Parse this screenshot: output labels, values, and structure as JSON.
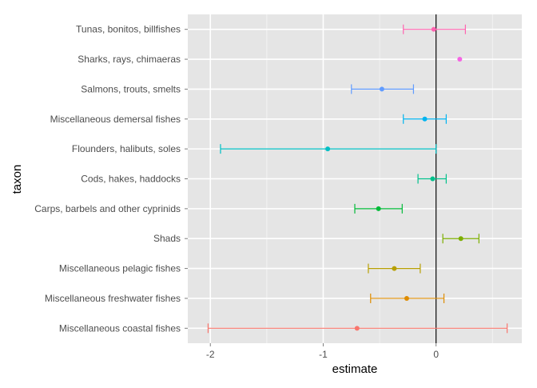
{
  "chart_data": {
    "type": "scatter",
    "xlabel": "estimate",
    "ylabel": "taxon",
    "xlim": [
      -2.2,
      0.76
    ],
    "x_ticks": [
      -2,
      -1,
      0
    ],
    "x_tick_labels": [
      "-2",
      "-1",
      "0"
    ],
    "reference_line_x": 0,
    "grid": true,
    "legend": "none",
    "taxa": [
      {
        "name": "Miscellaneous coastal fishes",
        "estimate": -0.7,
        "lower": -2.02,
        "upper": 0.63,
        "color": "#F8766D"
      },
      {
        "name": "Miscellaneous freshwater fishes",
        "estimate": -0.26,
        "lower": -0.58,
        "upper": 0.07,
        "color": "#DE8C00"
      },
      {
        "name": "Miscellaneous pelagic fishes",
        "estimate": -0.37,
        "lower": -0.6,
        "upper": -0.14,
        "color": "#B79F00"
      },
      {
        "name": "Shads",
        "estimate": 0.22,
        "lower": 0.06,
        "upper": 0.38,
        "color": "#7CAE00"
      },
      {
        "name": "Carps, barbels and other cyprinids",
        "estimate": -0.51,
        "lower": -0.72,
        "upper": -0.3,
        "color": "#00BA38"
      },
      {
        "name": "Cods, hakes, haddocks",
        "estimate": -0.03,
        "lower": -0.16,
        "upper": 0.09,
        "color": "#00C08B"
      },
      {
        "name": "Flounders, halibuts, soles",
        "estimate": -0.96,
        "lower": -1.91,
        "upper": 0.0,
        "color": "#00BFC4"
      },
      {
        "name": "Miscellaneous demersal fishes",
        "estimate": -0.1,
        "lower": -0.29,
        "upper": 0.09,
        "color": "#00B4F0"
      },
      {
        "name": "Salmons, trouts, smelts",
        "estimate": -0.48,
        "lower": -0.75,
        "upper": -0.2,
        "color": "#619CFF"
      },
      {
        "name": "Sharks, rays, chimaeras",
        "estimate": 0.21,
        "lower": null,
        "upper": null,
        "color": "#F564E3"
      },
      {
        "name": "Tunas, bonitos, billfishes",
        "estimate": -0.02,
        "lower": -0.29,
        "upper": 0.26,
        "color": "#FF64B0"
      }
    ]
  }
}
